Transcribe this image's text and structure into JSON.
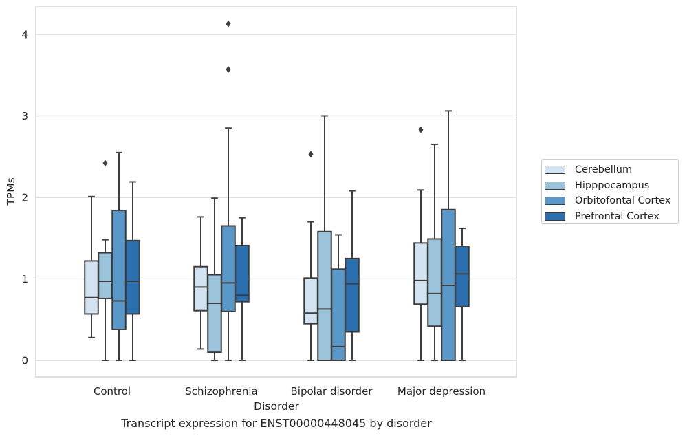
{
  "caption": "Transcript expression for ENST00000448045 by disorder",
  "chart_data": {
    "type": "boxplot",
    "xlabel": "Disorder",
    "ylabel": "TPMs",
    "ylim": [
      -0.2,
      4.35
    ],
    "yticks": [
      0,
      1,
      2,
      3,
      4
    ],
    "grid": "horizontal",
    "legend_position": "right",
    "categories": [
      "Control",
      "Schizophrenia",
      "Bipolar disorder",
      "Major depression"
    ],
    "series": [
      {
        "name": "Cerebellum",
        "color": "#d3e3f1",
        "boxes": [
          {
            "whisker_low": 0.28,
            "q1": 0.57,
            "median": 0.77,
            "q3": 1.22,
            "whisker_high": 2.01,
            "outliers": []
          },
          {
            "whisker_low": 0.14,
            "q1": 0.61,
            "median": 0.9,
            "q3": 1.15,
            "whisker_high": 1.76,
            "outliers": []
          },
          {
            "whisker_low": 0.0,
            "q1": 0.45,
            "median": 0.58,
            "q3": 1.01,
            "whisker_high": 1.7,
            "outliers": [
              2.53
            ]
          },
          {
            "whisker_low": 0.0,
            "q1": 0.69,
            "median": 0.98,
            "q3": 1.44,
            "whisker_high": 2.09,
            "outliers": [
              2.83
            ]
          }
        ]
      },
      {
        "name": "Hipppocampus",
        "color": "#9cc3dc",
        "boxes": [
          {
            "whisker_low": 0.0,
            "q1": 0.76,
            "median": 0.97,
            "q3": 1.32,
            "whisker_high": 1.48,
            "outliers": [
              2.42
            ]
          },
          {
            "whisker_low": 0.0,
            "q1": 0.1,
            "median": 0.7,
            "q3": 1.05,
            "whisker_high": 1.99,
            "outliers": []
          },
          {
            "whisker_low": 0.0,
            "q1": 0.0,
            "median": 0.63,
            "q3": 1.58,
            "whisker_high": 3.0,
            "outliers": []
          },
          {
            "whisker_low": 0.0,
            "q1": 0.42,
            "median": 0.82,
            "q3": 1.49,
            "whisker_high": 2.65,
            "outliers": []
          }
        ]
      },
      {
        "name": "Orbitofontal Cortex",
        "color": "#5998c8",
        "boxes": [
          {
            "whisker_low": 0.0,
            "q1": 0.38,
            "median": 0.73,
            "q3": 1.84,
            "whisker_high": 2.55,
            "outliers": []
          },
          {
            "whisker_low": 0.0,
            "q1": 0.6,
            "median": 0.95,
            "q3": 1.65,
            "whisker_high": 2.85,
            "outliers": [
              3.57,
              4.13
            ]
          },
          {
            "whisker_low": 0.0,
            "q1": 0.0,
            "median": 0.17,
            "q3": 1.12,
            "whisker_high": 1.54,
            "outliers": []
          },
          {
            "whisker_low": 0.0,
            "q1": 0.0,
            "median": 0.92,
            "q3": 1.85,
            "whisker_high": 3.06,
            "outliers": []
          }
        ]
      },
      {
        "name": "Prefrontal Cortex",
        "color": "#2b6fae",
        "boxes": [
          {
            "whisker_low": 0.0,
            "q1": 0.57,
            "median": 0.97,
            "q3": 1.47,
            "whisker_high": 2.19,
            "outliers": []
          },
          {
            "whisker_low": 0.0,
            "q1": 0.72,
            "median": 0.8,
            "q3": 1.41,
            "whisker_high": 1.75,
            "outliers": []
          },
          {
            "whisker_low": 0.0,
            "q1": 0.35,
            "median": 0.94,
            "q3": 1.25,
            "whisker_high": 2.08,
            "outliers": []
          },
          {
            "whisker_low": 0.0,
            "q1": 0.66,
            "median": 1.06,
            "q3": 1.4,
            "whisker_high": 1.62,
            "outliers": []
          }
        ]
      }
    ]
  }
}
